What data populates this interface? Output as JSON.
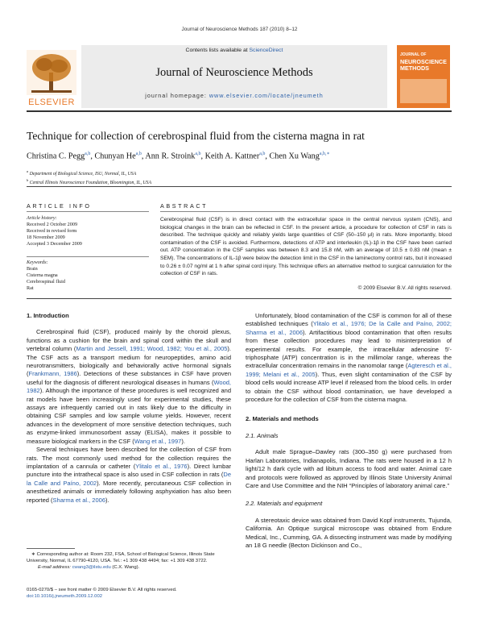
{
  "running_header": "Journal of Neuroscience Methods 187 (2010) 8–12",
  "masthead": {
    "contents_prefix": "Contents lists available at ",
    "contents_link": "ScienceDirect",
    "journal_title": "Journal of Neuroscience Methods",
    "homepage_prefix": "journal homepage: ",
    "homepage_url": "www.elsevier.com/locate/jneumeth",
    "publisher": "ELSEVIER",
    "cover_title_line1": "JOURNAL OF",
    "cover_title_line2": "NEUROSCIENCE",
    "cover_title_line3": "METHODS",
    "cover_color": "#e8792a",
    "elsevier_orange": "#e8792a"
  },
  "article": {
    "title": "Technique for collection of cerebrospinal fluid from the cisterna magna in rat",
    "authors": [
      {
        "name": "Christina C. Pegg",
        "sup": "a,b",
        "sep": ", "
      },
      {
        "name": "Chunyan He",
        "sup": "a,b",
        "sep": ", "
      },
      {
        "name": "Ann R. Stroink",
        "sup": "a,b",
        "sep": ", "
      },
      {
        "name": "Keith A. Kattner",
        "sup": "a,b",
        "sep": ", "
      },
      {
        "name": "Chen Xu Wang",
        "sup": "a,b,∗",
        "sep": ""
      }
    ],
    "affiliations": [
      {
        "sup": "a",
        "text": "Department of Biological Science, ISU, Normal, IL, USA"
      },
      {
        "sup": "b",
        "text": "Central Illinois Neuroscience Foundation, Bloomington, IL, USA"
      }
    ]
  },
  "article_info": {
    "heading": "ARTICLE INFO",
    "history_label": "Article history:",
    "history": [
      "Received 2 October 2009",
      "Received in revised form",
      "18 November 2009",
      "Accepted 3 December 2009"
    ],
    "keywords_label": "Keywords:",
    "keywords": [
      "Brain",
      "Cisterna magna",
      "Cerebrospinal fluid",
      "Rat"
    ]
  },
  "abstract": {
    "heading": "ABSTRACT",
    "text": "Cerebrospinal fluid (CSF) is in direct contact with the extracellular space in the central nervous system (CNS), and biological changes in the brain can be reflected in CSF. In the present article, a procedure for collection of CSF in rats is described. The technique quickly and reliably yields large quantities of CSF (50–150 μl) in rats. More importantly, blood contamination of the CSF is avoided. Furthermore, detections of ATP and interleukin (IL)-1β in the CSF have been carried out. ATP concentration in the CSF samples was between 8.3 and 15.8 nM, with an average of 10.5 ± 0.83 nM (mean ± SEM). The concentrations of IL-1β were below the detection limit in the CSF in the laminectomy control rats, but it increased to 0.26 ± 0.07 ng/ml at 1 h after spinal cord injury. This technique offers an alternative method to surgical cannulation for the collection of CSF in rats.",
    "copyright": "© 2009 Elsevier B.V. All rights reserved."
  },
  "left_column": {
    "section1_heading": "1.  Introduction",
    "p1_parts": [
      "Cerebrospinal fluid (CSF), produced mainly by the choroid plexus, functions as a cushion for the brain and spinal cord within the skull and vertebral column (",
      "Martin and Jessell, 1991; Wood, 1982; You et al., 2005",
      "). The CSF acts as a transport medium for neuropeptides, amino acid neurotransmitters, biologically and behaviorally active hormonal signals (",
      "Frankmann, 1986",
      "). Detections of these substances in CSF have proven useful for the diagnosis of different neurological diseases in humans (",
      "Wood, 1982",
      "). Although the importance of these procedures is well recognized and rat models have been increasingly used for experimental studies, these assays are infrequently carried out in rats likely due to the difficulty in obtaining CSF samples and low sample volume yields. However, recent advances in the development of more sensitive detection techniques, such as enzyme-linked immunosorbent assay (ELISA), makes it possible to measure biological markers in the CSF (",
      "Wang et al., 1997",
      ")."
    ],
    "p2_parts": [
      "Several techniques have been described for the collection of CSF from rats. The most commonly used method for the collection requires the implantation of a cannula or catheter (",
      "Ylitalo et al., 1976",
      "). Direct lumbar puncture into the intrathecal space is also used in CSF collection in rats (",
      "De la Calle and Paíno, 2002",
      "). More recently, percutaneous CSF collection in anesthetized animals or immediately following asphyxiation has also been reported (",
      "Sharma et al., 2006",
      ")."
    ],
    "footnote_line1": "∗ Corresponding author at: Room 232, FSA, School of Biological Science, Illinois State University, Normal, IL 67790-4120, USA. Tel.: +1 309 438 4494; fax: +1 309 438 3722.",
    "footnote_email_label": "E-mail address: ",
    "footnote_email": "cwang3@ilstu.edu",
    "footnote_email_suffix": " (C.X. Wang).",
    "issn_line": "0165-0270/$ – see front matter © 2009 Elsevier B.V. All rights reserved.",
    "doi_line": "doi:10.1016/j.jneumeth.2009.12.002"
  },
  "right_column": {
    "p3_parts": [
      "Unfortunately, blood contamination of the CSF is common for all of these established techniques (",
      "Ylitalo et al., 1976; De la Calle and Paíno, 2002; Sharma et al., 2006",
      "). Artifactitious blood contamination that often results from these collection procedures may lead to misinterpretation of experimental results. For example, the intracellular adenosine 5′-triphosphate (ATP) concentration is in the millimolar range, whereas the extracellular concentration remains in the nanomolar range (",
      "Agteresch et al., 1999; Melani et al., 2005",
      "). Thus, even slight contamination of the CSF by blood cells would increase ATP level if released from the blood cells. In order to obtain the CSF without blood contamination, we have developed a procedure for the collection of CSF from the cisterna magna."
    ],
    "section2_heading": "2.  Materials and methods",
    "section21_heading": "2.1.  Animals",
    "p4": "Adult male Sprague–Dawley rats (300–350 g) were purchased from Harlan Laboratories, Indianapolis, Indiana. The rats were housed in a 12 h light/12 h dark cycle with ad libitum access to food and water. Animal care and protocols were followed as approved by Illinois State University Animal Care and Use Committee and the NIH “Principles of laboratory animal care.”",
    "section22_heading": "2.2.  Materials and equipment",
    "p5": "A stereotaxic device was obtained from David Kopf instruments, Tujunda, California. An Optique surgical microscope was obtained from Endure Medical, Inc., Cumming, GA. A dissecting instrument was made by modifying an 18 G needle (Becton Dickinson and Co.,"
  },
  "colors": {
    "link": "#2a5fa8",
    "masthead_band": "#e8e8e8"
  }
}
